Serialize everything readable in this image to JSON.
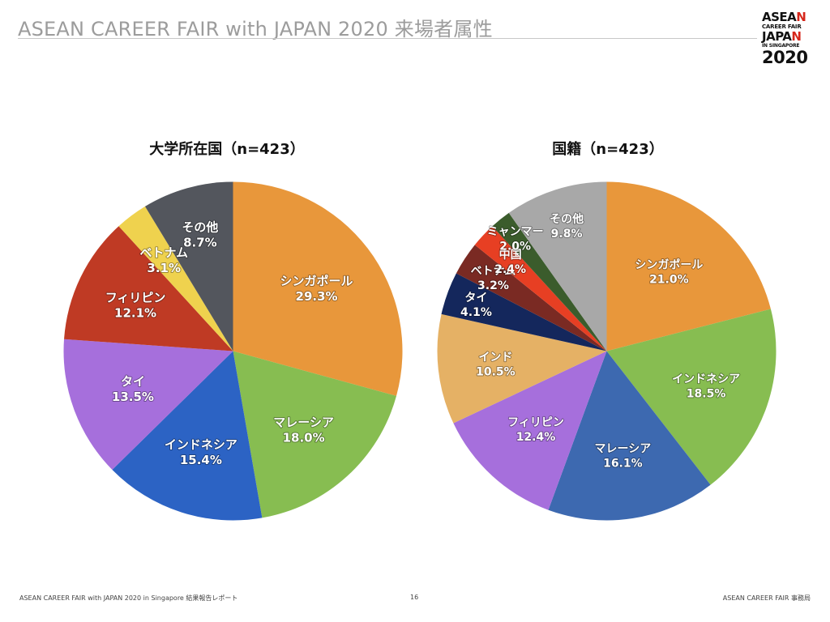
{
  "slide": {
    "title": "ASEAN CAREER FAIR with JAPAN 2020 来場者属性",
    "logo": {
      "line1": "ASEA",
      "line1_red": "N",
      "line2": "CAREER FAIR",
      "line3": "JAPA",
      "line3_red": "N",
      "line4": "IN SINGAPORE",
      "line5": "2020"
    },
    "footer_left": "ASEAN CAREER FAIR with JAPAN 2020 in Singapore 結果報告レポート",
    "footer_center": "16",
    "footer_right": "ASEAN CAREER FAIR 事務局"
  },
  "chart_data": [
    {
      "type": "pie",
      "title": "大学所在国（n=423）",
      "slices": [
        {
          "name": "シンガポール",
          "label": "29.3%",
          "value": 29.3,
          "color": "#e8973b"
        },
        {
          "name": "マレーシア",
          "label": "18.0%",
          "value": 18.0,
          "color": "#87bd51"
        },
        {
          "name": "インドネシア",
          "label": "15.4%",
          "value": 15.4,
          "color": "#2c63c4"
        },
        {
          "name": "タイ",
          "label": "13.5%",
          "value": 13.5,
          "color": "#a66fdc"
        },
        {
          "name": "フィリピン",
          "label": "12.1%",
          "value": 12.1,
          "color": "#bf3a24"
        },
        {
          "name": "ベトナム",
          "label": "3.1%",
          "value": 3.1,
          "color": "#efd24e"
        },
        {
          "name": "その他",
          "label": "8.7%",
          "value": 8.7,
          "color": "#53565d"
        }
      ]
    },
    {
      "type": "pie",
      "title": "国籍（n=423）",
      "slices": [
        {
          "name": "シンガポール",
          "label": "21.0%",
          "value": 21.0,
          "color": "#e8973b"
        },
        {
          "name": "インドネシア",
          "label": "18.5%",
          "value": 18.5,
          "color": "#87bd51"
        },
        {
          "name": "マレーシア",
          "label": "16.1%",
          "value": 16.1,
          "color": "#3d69b0"
        },
        {
          "name": "フィリピン",
          "label": "12.4%",
          "value": 12.4,
          "color": "#a66fdc"
        },
        {
          "name": "インド",
          "label": "10.5%",
          "value": 10.5,
          "color": "#e5b165"
        },
        {
          "name": "タイ",
          "label": "4.1%",
          "value": 4.1,
          "color": "#14275c"
        },
        {
          "name": "ベトナム",
          "label": "3.2%",
          "value": 3.2,
          "color": "#7a2a23"
        },
        {
          "name": "中国",
          "label": "2.4%",
          "value": 2.4,
          "color": "#e73f23"
        },
        {
          "name": "ミャンマー",
          "label": "2.0%",
          "value": 2.0,
          "color": "#3b5c2c"
        },
        {
          "name": "その他",
          "label": "9.8%",
          "value": 9.8,
          "color": "#a8a8a8"
        }
      ]
    }
  ]
}
